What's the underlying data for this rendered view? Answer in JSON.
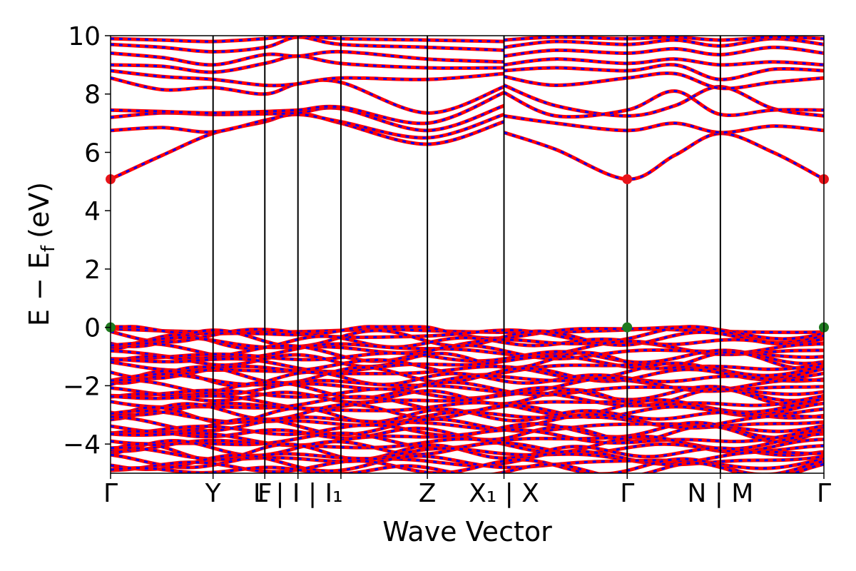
{
  "chart_data": {
    "type": "line",
    "title": "",
    "xlabel": "Wave Vector",
    "ylabel": {
      "main": "E − E",
      "sub": "f",
      "unit": "(eV)"
    },
    "ylim": [
      -5,
      10
    ],
    "yticks": [
      -4,
      -2,
      0,
      2,
      4,
      6,
      8,
      10
    ],
    "ytick_labels": [
      "−4",
      "−2",
      "0",
      "2",
      "4",
      "6",
      "8",
      "10"
    ],
    "xlim": [
      0,
      13.78
    ],
    "kpoints": [
      {
        "label": "Γ",
        "x": 0.0
      },
      {
        "label": "Y",
        "x": 1.98
      },
      {
        "label": "F",
        "x": 2.98
      },
      {
        "label": "L | I | I₁",
        "x": 3.62
      },
      {
        "label": "",
        "x": 4.45
      },
      {
        "label": "Z",
        "x": 6.12
      },
      {
        "label": "X₁ | X",
        "x": 7.6
      },
      {
        "label": "Γ",
        "x": 9.98
      },
      {
        "label": "N | M",
        "x": 11.78
      },
      {
        "label": "Γ",
        "x": 13.78
      }
    ],
    "series_colors": {
      "bands_a": "#ff0000",
      "bands_b": "#0000ff"
    },
    "markers": [
      {
        "x": 0.0,
        "y": 5.08,
        "color": "#e8141a"
      },
      {
        "x": 9.98,
        "y": 5.08,
        "color": "#e8141a"
      },
      {
        "x": 13.78,
        "y": 5.08,
        "color": "#e8141a"
      },
      {
        "x": 0.0,
        "y": 0.0,
        "color": "#1f7a1f"
      },
      {
        "x": 9.98,
        "y": 0.0,
        "color": "#1f7a1f"
      },
      {
        "x": 13.78,
        "y": 0.0,
        "color": "#1f7a1f"
      }
    ],
    "conduction_bands": [
      {
        "name": "cb1",
        "points": [
          [
            0,
            5.08
          ],
          [
            1.0,
            5.9
          ],
          [
            1.98,
            6.65
          ],
          [
            2.98,
            7.05
          ],
          [
            3.62,
            7.35
          ],
          [
            4.45,
            7.0
          ],
          [
            6.12,
            6.28
          ],
          [
            7.6,
            7.05
          ]
        ]
      },
      {
        "name": "cb1b",
        "points": [
          [
            7.6,
            6.68
          ],
          [
            8.6,
            6.1
          ],
          [
            9.98,
            5.08
          ],
          [
            10.9,
            5.9
          ],
          [
            11.78,
            6.65
          ],
          [
            12.8,
            6.0
          ],
          [
            13.78,
            5.08
          ]
        ]
      },
      {
        "name": "cb2",
        "points": [
          [
            0,
            6.75
          ],
          [
            1.0,
            6.85
          ],
          [
            1.98,
            6.7
          ],
          [
            2.98,
            7.1
          ],
          [
            3.62,
            7.3
          ],
          [
            4.45,
            7.05
          ],
          [
            6.12,
            6.5
          ],
          [
            7.6,
            7.3
          ]
        ]
      },
      {
        "name": "cb2b",
        "points": [
          [
            7.6,
            7.25
          ],
          [
            8.6,
            7.0
          ],
          [
            9.98,
            6.75
          ],
          [
            10.9,
            7.0
          ],
          [
            11.78,
            6.68
          ],
          [
            12.8,
            6.9
          ],
          [
            13.78,
            6.75
          ]
        ]
      },
      {
        "name": "cb3",
        "points": [
          [
            0,
            7.2
          ],
          [
            1.0,
            7.35
          ],
          [
            1.98,
            7.3
          ],
          [
            2.98,
            7.32
          ],
          [
            3.62,
            7.35
          ],
          [
            4.45,
            7.5
          ],
          [
            6.12,
            6.75
          ],
          [
            7.6,
            7.6
          ]
        ]
      },
      {
        "name": "cb3b",
        "points": [
          [
            7.6,
            8.3
          ],
          [
            8.6,
            7.6
          ],
          [
            9.98,
            7.25
          ],
          [
            10.9,
            7.6
          ],
          [
            11.78,
            8.25
          ],
          [
            12.8,
            7.5
          ],
          [
            13.78,
            7.25
          ]
        ]
      },
      {
        "name": "cb4",
        "points": [
          [
            0,
            7.45
          ],
          [
            1.0,
            7.4
          ],
          [
            1.98,
            7.35
          ],
          [
            2.98,
            7.4
          ],
          [
            3.62,
            7.45
          ],
          [
            4.45,
            7.55
          ],
          [
            6.12,
            7.0
          ],
          [
            7.6,
            8.05
          ]
        ]
      },
      {
        "name": "cb4b",
        "points": [
          [
            7.6,
            8.05
          ],
          [
            8.6,
            7.25
          ],
          [
            9.98,
            7.45
          ],
          [
            10.9,
            8.1
          ],
          [
            11.78,
            7.3
          ],
          [
            12.8,
            7.45
          ],
          [
            13.78,
            7.45
          ]
        ]
      },
      {
        "name": "cb5",
        "points": [
          [
            0,
            8.55
          ],
          [
            1.0,
            8.15
          ],
          [
            1.98,
            8.22
          ],
          [
            2.98,
            8.0
          ],
          [
            3.62,
            8.35
          ],
          [
            4.45,
            8.4
          ],
          [
            6.12,
            7.35
          ],
          [
            7.6,
            8.25
          ]
        ]
      },
      {
        "name": "cb5b",
        "points": [
          [
            7.6,
            8.6
          ],
          [
            8.6,
            8.3
          ],
          [
            9.98,
            8.55
          ],
          [
            10.9,
            8.7
          ],
          [
            11.78,
            8.2
          ],
          [
            12.8,
            8.4
          ],
          [
            13.78,
            8.55
          ]
        ]
      },
      {
        "name": "cb6",
        "points": [
          [
            0,
            8.8
          ],
          [
            1.0,
            8.6
          ],
          [
            1.98,
            8.5
          ],
          [
            2.98,
            8.3
          ],
          [
            3.62,
            8.35
          ],
          [
            4.45,
            8.55
          ],
          [
            6.12,
            8.5
          ],
          [
            7.6,
            8.7
          ]
        ]
      },
      {
        "name": "cb6b",
        "points": [
          [
            7.6,
            8.8
          ],
          [
            8.6,
            8.9
          ],
          [
            9.98,
            8.8
          ],
          [
            10.9,
            9.0
          ],
          [
            11.78,
            8.5
          ],
          [
            12.8,
            8.85
          ],
          [
            13.78,
            8.8
          ]
        ]
      },
      {
        "name": "cb7",
        "points": [
          [
            0,
            9.0
          ],
          [
            1.0,
            8.95
          ],
          [
            1.98,
            8.75
          ],
          [
            2.98,
            9.05
          ],
          [
            3.62,
            9.3
          ],
          [
            4.45,
            9.05
          ],
          [
            6.12,
            8.9
          ],
          [
            7.6,
            8.9
          ]
        ]
      },
      {
        "name": "cb7b",
        "points": [
          [
            7.6,
            9.0
          ],
          [
            8.6,
            9.2
          ],
          [
            9.98,
            9.05
          ],
          [
            10.9,
            9.2
          ],
          [
            11.78,
            9.0
          ],
          [
            12.8,
            9.1
          ],
          [
            13.78,
            9.0
          ]
        ]
      },
      {
        "name": "cb8",
        "points": [
          [
            0,
            9.4
          ],
          [
            1.0,
            9.25
          ],
          [
            1.98,
            9.0
          ],
          [
            2.98,
            9.35
          ],
          [
            3.62,
            9.3
          ],
          [
            4.45,
            9.45
          ],
          [
            6.12,
            9.2
          ],
          [
            7.6,
            9.1
          ]
        ]
      },
      {
        "name": "cb8b",
        "points": [
          [
            7.6,
            9.3
          ],
          [
            8.6,
            9.5
          ],
          [
            9.98,
            9.4
          ],
          [
            10.9,
            9.55
          ],
          [
            11.78,
            9.35
          ],
          [
            12.8,
            9.6
          ],
          [
            13.78,
            9.4
          ]
        ]
      },
      {
        "name": "cb9",
        "points": [
          [
            0,
            9.7
          ],
          [
            1.0,
            9.6
          ],
          [
            1.98,
            9.45
          ],
          [
            2.98,
            9.6
          ],
          [
            3.62,
            9.95
          ],
          [
            4.45,
            9.7
          ],
          [
            6.12,
            9.6
          ],
          [
            7.6,
            9.5
          ]
        ]
      },
      {
        "name": "cb9b",
        "points": [
          [
            7.6,
            9.6
          ],
          [
            8.6,
            9.8
          ],
          [
            9.98,
            9.7
          ],
          [
            10.9,
            9.85
          ],
          [
            11.78,
            9.65
          ],
          [
            12.8,
            9.9
          ],
          [
            13.78,
            9.7
          ]
        ]
      },
      {
        "name": "cb10",
        "points": [
          [
            0,
            9.9
          ],
          [
            1.0,
            9.85
          ],
          [
            1.98,
            9.8
          ],
          [
            2.98,
            9.9
          ],
          [
            3.62,
            10.0
          ],
          [
            4.45,
            9.9
          ],
          [
            6.12,
            9.85
          ],
          [
            7.6,
            9.8
          ]
        ]
      },
      {
        "name": "cb10b",
        "points": [
          [
            7.6,
            9.85
          ],
          [
            8.6,
            9.95
          ],
          [
            9.98,
            9.9
          ],
          [
            10.9,
            9.95
          ],
          [
            11.78,
            9.85
          ],
          [
            12.8,
            9.95
          ],
          [
            13.78,
            9.9
          ]
        ]
      }
    ],
    "valence_band_count": 40,
    "valence_range": [
      -5,
      0
    ]
  }
}
